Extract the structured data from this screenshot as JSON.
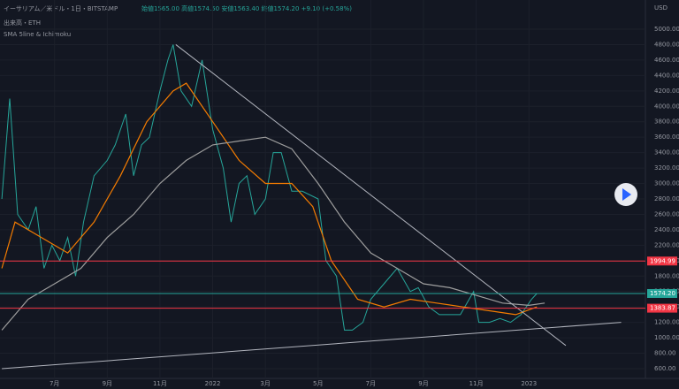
{
  "header": {
    "title": "イーサリアム／米ドル・1日・BITSTAMP",
    "ohlc": "始値1565.00 高値1574.50 安値1563.40 終値1574.20 +9.10 (+0.58%)",
    "volume_label": "出来高・ETH",
    "indicator": "SMA 5line & Ichimoku",
    "currency": "USD"
  },
  "chart_data": {
    "type": "line",
    "xlim": [
      3.93,
      28.42
    ],
    "xticks": [
      {
        "value": 6,
        "label": "7月"
      },
      {
        "value": 8,
        "label": "9月"
      },
      {
        "value": 10,
        "label": "11月"
      },
      {
        "value": 12,
        "label": "2022"
      },
      {
        "value": 14,
        "label": "3月"
      },
      {
        "value": 16,
        "label": "5月"
      },
      {
        "value": 18,
        "label": "7月"
      },
      {
        "value": 20,
        "label": "9月"
      },
      {
        "value": 22,
        "label": "11月"
      },
      {
        "value": 24,
        "label": "2023"
      }
    ],
    "ylim": [
      600,
      5000
    ],
    "yticks": [
      {
        "value": 600,
        "label": "600.00"
      },
      {
        "value": 800,
        "label": "800.00"
      },
      {
        "value": 1000,
        "label": "1000.00"
      },
      {
        "value": 1200,
        "label": "1200.00"
      },
      {
        "value": 1400,
        "label": "1400.00"
      },
      {
        "value": 1600,
        "label": "1600.00"
      },
      {
        "value": 1800,
        "label": "1800.00"
      },
      {
        "value": 2000,
        "label": "2000.00"
      },
      {
        "value": 2200,
        "label": "2200.00"
      },
      {
        "value": 2400,
        "label": "2400.00"
      },
      {
        "value": 2600,
        "label": "2600.00"
      },
      {
        "value": 2800,
        "label": "2800.00"
      },
      {
        "value": 3000,
        "label": "3000.00"
      },
      {
        "value": 3200,
        "label": "3200.00"
      },
      {
        "value": 3400,
        "label": "3400.00"
      },
      {
        "value": 3600,
        "label": "3600.00"
      },
      {
        "value": 3800,
        "label": "3800.00"
      },
      {
        "value": 4000,
        "label": "4000.00"
      },
      {
        "value": 4200,
        "label": "4200.00"
      },
      {
        "value": 4400,
        "label": "4400.00"
      },
      {
        "value": 4600,
        "label": "4600.00"
      },
      {
        "value": 4800,
        "label": "4800.00"
      },
      {
        "value": 5000,
        "label": "5000.00"
      }
    ],
    "grid": true,
    "series": [
      {
        "color": "#26a69a",
        "x": [
          4.0,
          4.3,
          4.6,
          5.0,
          5.3,
          5.6,
          5.9,
          6.2,
          6.5,
          6.8,
          7.1,
          7.5,
          8.0,
          8.3,
          8.7,
          9.0,
          9.3,
          9.6,
          10.0,
          10.3,
          10.5,
          10.8,
          11.2,
          11.6,
          12.0,
          12.4,
          12.7,
          13.0,
          13.3,
          13.6,
          14.0,
          14.3,
          14.6,
          15.0,
          15.4,
          16.0,
          16.3,
          16.7,
          17.0,
          17.3,
          17.7,
          18.0,
          18.5,
          19.0,
          19.5,
          19.8,
          20.2,
          20.6,
          21.0,
          21.4,
          21.9,
          22.1,
          22.5,
          22.9,
          23.3,
          23.7,
          24.1,
          24.3
        ],
        "values": [
          2800,
          4100,
          2600,
          2400,
          2700,
          1900,
          2200,
          2000,
          2300,
          1800,
          2500,
          3100,
          3300,
          3500,
          3900,
          3100,
          3500,
          3600,
          4200,
          4600,
          4800,
          4200,
          4000,
          4600,
          3700,
          3200,
          2500,
          3000,
          3100,
          2600,
          2800,
          3400,
          3400,
          2900,
          2900,
          2800,
          2000,
          1800,
          1100,
          1100,
          1200,
          1500,
          1700,
          1900,
          1600,
          1650,
          1400,
          1300,
          1300,
          1300,
          1600,
          1200,
          1200,
          1250,
          1200,
          1300,
          1500,
          1574.2
        ]
      },
      {
        "color": "#f57c00",
        "x": [
          4.0,
          4.5,
          5.5,
          6.5,
          7.5,
          8.5,
          9.5,
          10.5,
          11.0,
          12.0,
          13.0,
          14.0,
          15.0,
          15.8,
          16.5,
          17.5,
          18.5,
          19.5,
          20.5,
          21.5,
          22.5,
          23.5,
          24.3
        ],
        "values": [
          1900,
          2500,
          2300,
          2100,
          2500,
          3100,
          3800,
          4200,
          4300,
          3800,
          3300,
          3000,
          3000,
          2700,
          2000,
          1500,
          1400,
          1500,
          1450,
          1400,
          1350,
          1300,
          1400
        ]
      },
      {
        "color": "#9e9e9e",
        "x": [
          4.0,
          5.0,
          6.0,
          7.0,
          8.0,
          9.0,
          10.0,
          11.0,
          12.0,
          13.0,
          14.0,
          15.0,
          16.0,
          17.0,
          18.0,
          19.0,
          20.0,
          21.0,
          22.0,
          23.0,
          24.0,
          24.6
        ],
        "values": [
          1100,
          1500,
          1700,
          1900,
          2300,
          2600,
          3000,
          3300,
          3500,
          3550,
          3600,
          3450,
          3000,
          2500,
          2100,
          1900,
          1700,
          1650,
          1550,
          1450,
          1420,
          1450
        ]
      }
    ],
    "trendlines": [
      {
        "x": [
          10.6,
          25.4
        ],
        "y": [
          4800,
          900
        ]
      },
      {
        "x": [
          4.0,
          27.5
        ],
        "y": [
          600,
          1200
        ]
      }
    ],
    "levels": {
      "values": [
        1994.99,
        1574.2,
        1383.87
      ],
      "value_labels": [
        "1994.99",
        "1574.20",
        "1383.87"
      ],
      "colors": [
        "#f23645",
        "#26a69a",
        "#f23645"
      ]
    }
  }
}
